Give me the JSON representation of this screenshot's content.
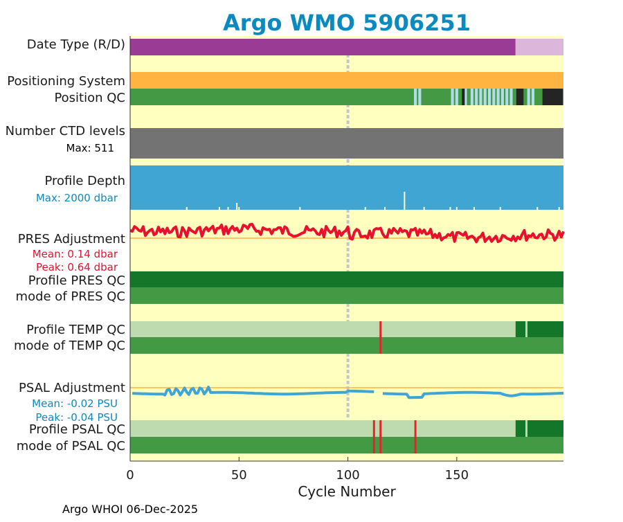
{
  "title": "Argo WMO 5906251",
  "footer": "Argo WHOI 06-Dec-2025",
  "colors": {
    "panel_bg": "#ffffbf",
    "title": "#0b8ac0",
    "ref_line": "#ffb340",
    "pres": "#e8102e",
    "psal": "#41a5d3",
    "dark_green": "#137628",
    "mid_green": "#449a44",
    "light_green": "#bedbb0",
    "light_blue": "#b3dbe9",
    "near_black": "#242424",
    "grey": "#737373",
    "purple": "#9a3b96",
    "light_purple": "#dcb6db",
    "orange": "#ffb340",
    "qc_red": "#e3242b",
    "midline": "#c5c5d2"
  },
  "labels": {
    "date_type": "Date Type (R/D)",
    "positioning": "Positioning System",
    "position_qc": "Position QC",
    "nlevels": "Number CTD levels",
    "nlevels_max": "Max: 511",
    "depth": "Profile Depth",
    "depth_max": "Max: 2000 dbar",
    "pres_adj": "PRES Adjustment",
    "pres_mean": "Mean: 0.14 dbar",
    "pres_peak": "Peak: 0.64 dbar",
    "pres_qc": "Profile PRES QC",
    "pres_mode": "mode of PRES QC",
    "temp_qc": "Profile TEMP QC",
    "temp_mode": "mode of TEMP QC",
    "psal_adj": "PSAL Adjustment",
    "psal_mean": "Mean: -0.02 PSU",
    "psal_peak": "Peak: -0.04 PSU",
    "psal_qc": "Profile PSAL QC",
    "psal_mode": "mode of PSAL QC"
  },
  "chart_data": {
    "type": "bar",
    "title": "Argo WMO 5906251",
    "xlabel": "Cycle Number",
    "xlim": [
      0,
      199
    ],
    "xticks": [
      0,
      50,
      100,
      150
    ],
    "highlight_cycle": 100,
    "date_type": {
      "realtime_until": 177,
      "delayed_from": 177
    },
    "positioning_system": "all cycles same system",
    "position_qc_anomalies": {
      "light_blue_cycles": [
        131,
        133,
        148,
        150,
        154,
        157,
        159,
        161,
        163,
        165,
        167,
        169,
        171,
        173,
        175,
        183,
        185
      ],
      "black_cycles": [
        153,
        178,
        179,
        180,
        190,
        191,
        192,
        193,
        194,
        195,
        196,
        197,
        198
      ]
    },
    "nlevels_max": 511,
    "profile_depth_max_dbar": 2000,
    "profile_depth_short_cycles": [
      26,
      41,
      45,
      49,
      50,
      78,
      108,
      117,
      126,
      135,
      147,
      150,
      158,
      170,
      187,
      197
    ],
    "pres_adjustment": {
      "mean_dbar": 0.14,
      "peak_dbar": 0.64
    },
    "profile_pres_qc": "A",
    "mode_pres_qc": "1",
    "profile_temp_qc": {
      "light_until": 177,
      "dark_from": 177,
      "flag_cycles": [
        115
      ],
      "light_marker_cycles": [
        182
      ]
    },
    "mode_temp_qc": {
      "flag_cycles": [
        115
      ]
    },
    "psal_adjustment": {
      "mean_psu": -0.02,
      "peak_psu": -0.04
    },
    "profile_psal_qc": {
      "light_until": 177,
      "dark_from": 177,
      "flag_cycles": [
        112,
        115,
        131
      ],
      "light_marker_cycles": [
        182
      ]
    },
    "mode_psal_qc": {
      "flag_cycles": [
        112,
        115,
        131
      ]
    }
  }
}
